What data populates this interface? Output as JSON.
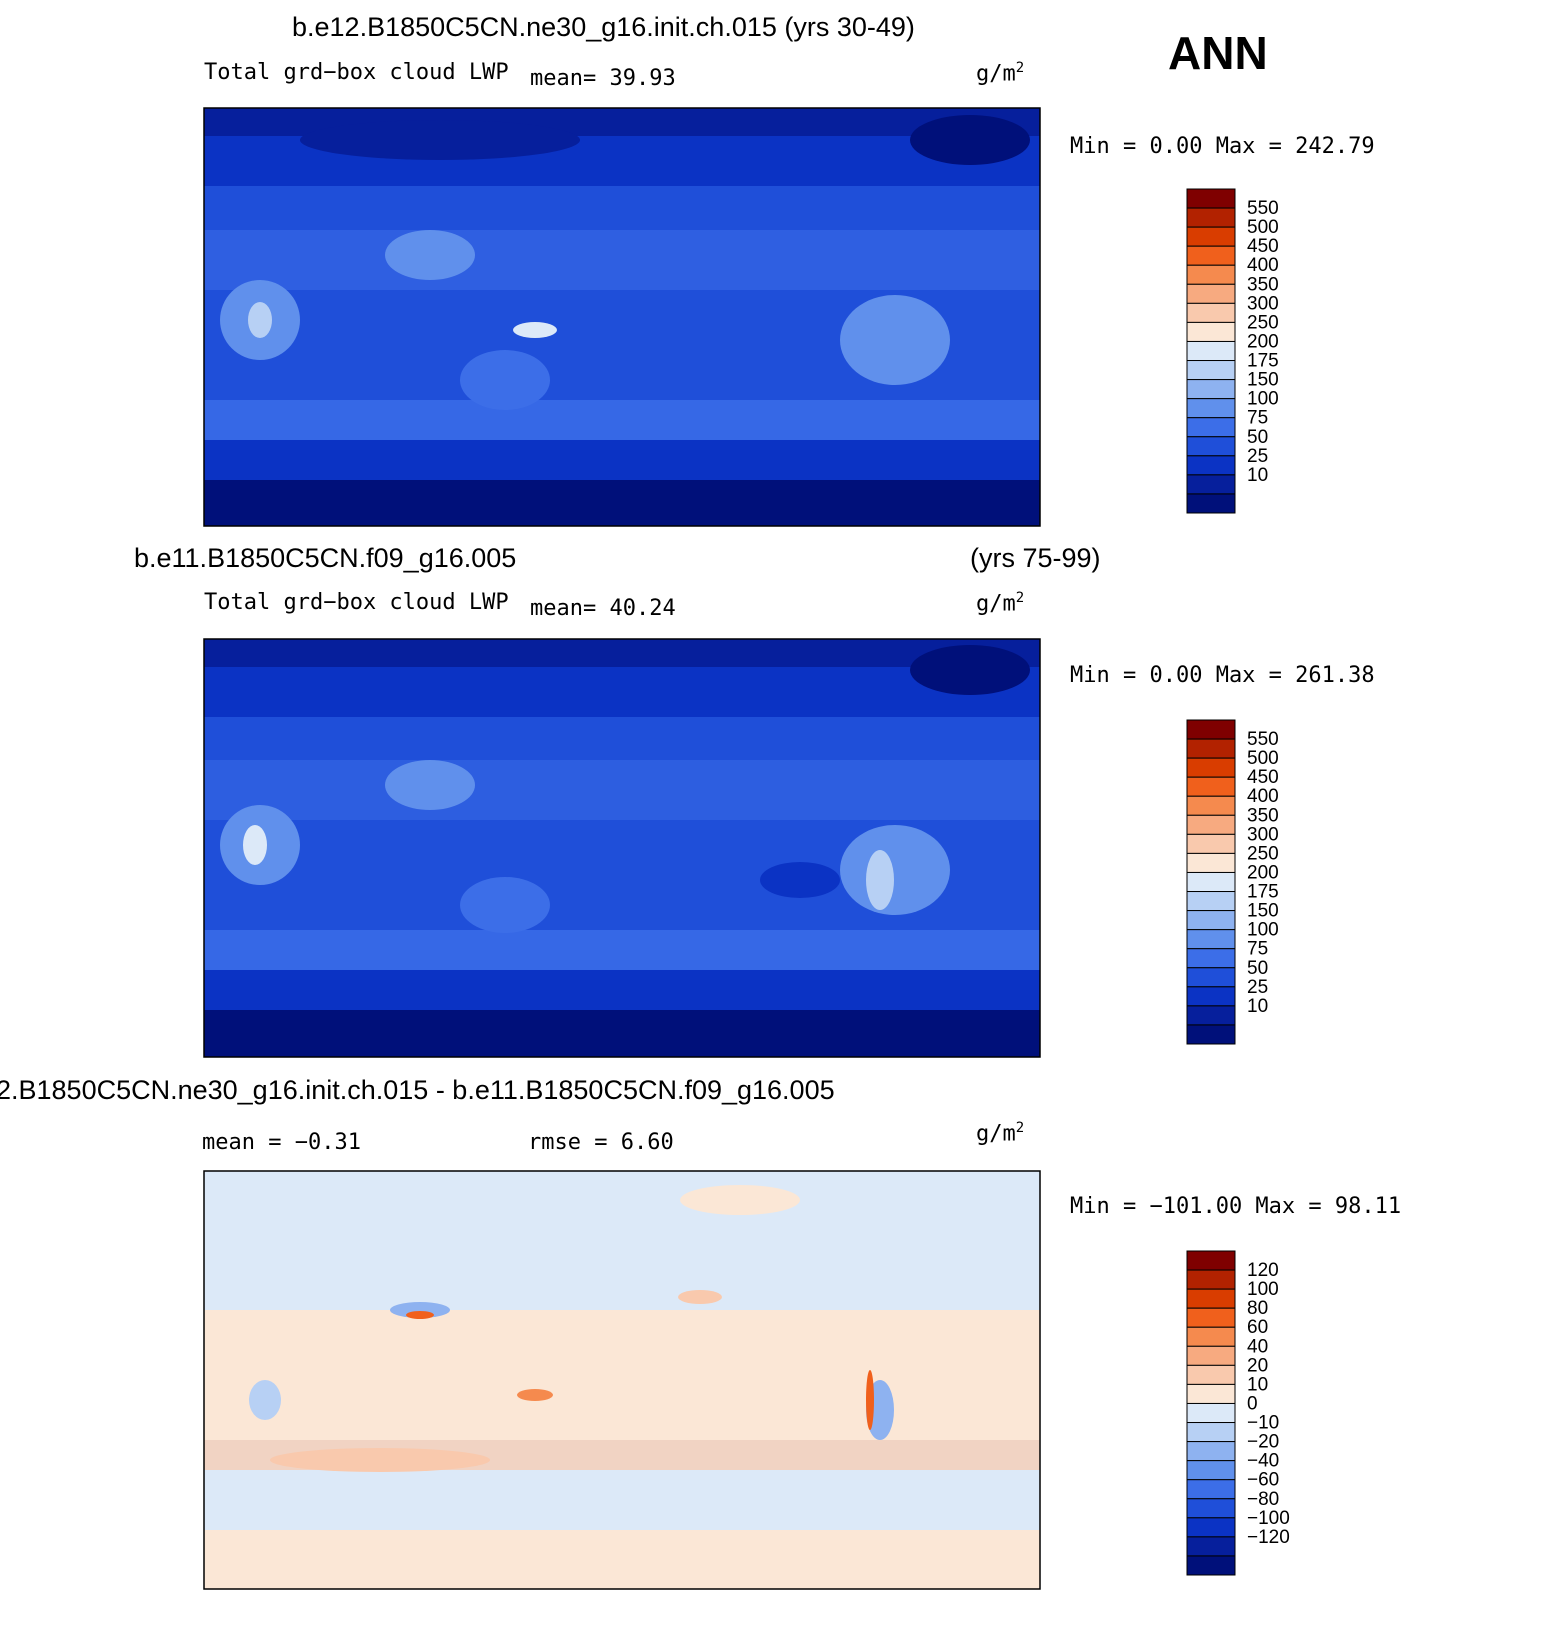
{
  "season": "ANN",
  "panels": [
    {
      "title_left": "b.e12.B1850C5CN.ne30_g16.init.ch.015 (yrs 30-49)",
      "title_right": "",
      "variable": "Total grd−box cloud LWP",
      "stat1": "mean=   39.93",
      "stat2": "",
      "units": "g/m",
      "units_sup": "2",
      "minmax": "Min =     0.00 Max = 242.79",
      "colorbar_labels": [
        "550",
        "500",
        "450",
        "400",
        "350",
        "300",
        "250",
        "200",
        "175",
        "150",
        "100",
        "75",
        "50",
        "25",
        "10"
      ]
    },
    {
      "title_left": "b.e11.B1850C5CN.f09_g16.005",
      "title_right": "(yrs 75-99)",
      "variable": "Total grd−box cloud LWP",
      "stat1": "mean=   40.24",
      "stat2": "",
      "units": "g/m",
      "units_sup": "2",
      "minmax": "Min =     0.00 Max = 261.38",
      "colorbar_labels": [
        "550",
        "500",
        "450",
        "400",
        "350",
        "300",
        "250",
        "200",
        "175",
        "150",
        "100",
        "75",
        "50",
        "25",
        "10"
      ]
    },
    {
      "title_left": "2.B1850C5CN.ne30_g16.init.ch.015 - b.e11.B1850C5CN.f09_g16.005",
      "title_right": "",
      "variable": "",
      "stat1": "mean =   −0.31",
      "stat2": "rmse =    6.60",
      "units": "g/m",
      "units_sup": "2",
      "minmax": "Min = −101.00 Max =   98.11",
      "colorbar_labels": [
        "120",
        "100",
        "80",
        "60",
        "40",
        "20",
        "10",
        "0",
        "−10",
        "−20",
        "−40",
        "−60",
        "−80",
        "−100",
        "−120"
      ]
    }
  ],
  "colors": {
    "abs_scale": [
      "#7f0000",
      "#b22200",
      "#d93d00",
      "#f0601c",
      "#f58a4e",
      "#f7aa80",
      "#f9c9ad",
      "#fbe7d6",
      "#dce9f8",
      "#b7d0f4",
      "#8eb2f0",
      "#6090ec",
      "#3c6ee8",
      "#1f4fd9",
      "#0b33c4",
      "#061f9c",
      "#00107a"
    ],
    "diff_scale": [
      "#7f0000",
      "#b22200",
      "#d93d00",
      "#f0601c",
      "#f58a4e",
      "#f7aa80",
      "#f9c9ad",
      "#fbe7d6",
      "#dce9f8",
      "#b7d0f4",
      "#8eb2f0",
      "#6090ec",
      "#3c6ee8",
      "#1f4fd9",
      "#0b33c4",
      "#061f9c",
      "#00107a"
    ]
  },
  "chart_data": [
    {
      "type": "heatmap",
      "title": "b.e12.B1850C5CN.ne30_g16.init.ch.015 (yrs 30-49)",
      "variable": "Total grd-box cloud LWP",
      "units": "g/m2",
      "mean": 39.93,
      "min": 0.0,
      "max": 242.79,
      "levels": [
        10,
        25,
        50,
        75,
        100,
        150,
        175,
        200,
        250,
        300,
        350,
        400,
        450,
        500,
        550
      ]
    },
    {
      "type": "heatmap",
      "title": "b.e11.B1850C5CN.f09_g16.005 (yrs 75-99)",
      "variable": "Total grd-box cloud LWP",
      "units": "g/m2",
      "mean": 40.24,
      "min": 0.0,
      "max": 261.38,
      "levels": [
        10,
        25,
        50,
        75,
        100,
        150,
        175,
        200,
        250,
        300,
        350,
        400,
        450,
        500,
        550
      ]
    },
    {
      "type": "heatmap",
      "title": "2.B1850C5CN.ne30_g16.init.ch.015 - b.e11.B1850C5CN.f09_g16.005",
      "units": "g/m2",
      "mean": -0.31,
      "rmse": 6.6,
      "min": -101.0,
      "max": 98.11,
      "levels": [
        -120,
        -100,
        -80,
        -60,
        -40,
        -20,
        -10,
        0,
        10,
        20,
        40,
        60,
        80,
        100,
        120
      ]
    }
  ]
}
